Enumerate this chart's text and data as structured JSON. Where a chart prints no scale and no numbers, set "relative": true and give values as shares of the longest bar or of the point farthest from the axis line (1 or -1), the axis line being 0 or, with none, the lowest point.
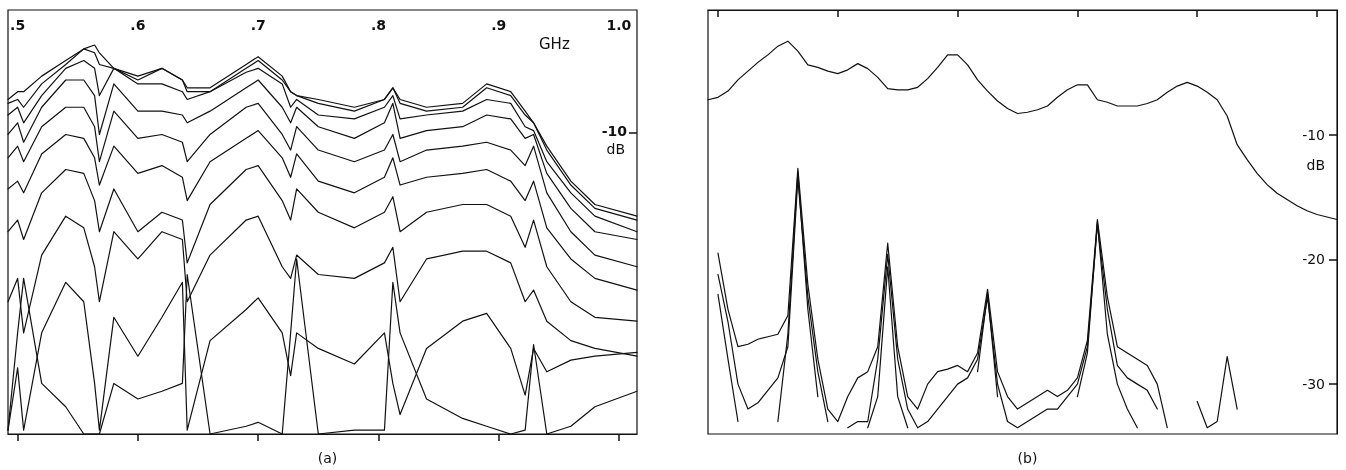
{
  "chart_data": [
    {
      "type": "line",
      "title": "(a)",
      "xlabel": "GHz",
      "ylabel": "dB",
      "annotations": [
        "-10"
      ],
      "relative": true,
      "marker": "none",
      "line_style": "solid",
      "x": [
        0.492,
        0.5,
        0.505,
        0.52,
        0.54,
        0.555,
        0.564,
        0.568,
        0.58,
        0.6,
        0.62,
        0.637,
        0.641,
        0.66,
        0.69,
        0.7,
        0.72,
        0.727,
        0.732,
        0.75,
        0.78,
        0.805,
        0.812,
        0.818,
        0.84,
        0.87,
        0.89,
        0.91,
        0.922,
        0.929,
        0.94,
        0.96,
        0.98,
        1.015
      ],
      "xlim": [
        0.492,
        1.015
      ],
      "xticks": [
        {
          "value": 0.5,
          "label": ".5"
        },
        {
          "value": 0.6,
          "label": ".6"
        },
        {
          "value": 0.7,
          "label": ".7"
        },
        {
          "value": 0.8,
          "label": ".8"
        },
        {
          "value": 0.9,
          "label": ".9"
        },
        {
          "value": 1.0,
          "label": "1.0"
        }
      ],
      "series": [
        {
          "color": "#111111",
          "values": [
            0.86,
            0.88,
            0.88,
            0.92,
            0.96,
            0.99,
            1.0,
            0.98,
            0.94,
            0.92,
            0.94,
            0.91,
            0.89,
            0.89,
            0.95,
            0.97,
            0.92,
            0.88,
            0.87,
            0.86,
            0.84,
            0.86,
            0.89,
            0.86,
            0.84,
            0.85,
            0.9,
            0.88,
            0.83,
            0.8,
            0.74,
            0.65,
            0.59,
            0.56
          ]
        },
        {
          "color": "#111111",
          "values": [
            0.85,
            0.86,
            0.84,
            0.9,
            0.95,
            0.99,
            0.98,
            0.95,
            0.94,
            0.91,
            0.94,
            0.91,
            0.88,
            0.88,
            0.94,
            0.96,
            0.91,
            0.88,
            0.87,
            0.85,
            0.83,
            0.86,
            0.89,
            0.85,
            0.83,
            0.84,
            0.89,
            0.87,
            0.82,
            0.8,
            0.73,
            0.64,
            0.58,
            0.55
          ]
        },
        {
          "color": "#111111",
          "values": [
            0.82,
            0.84,
            0.8,
            0.87,
            0.94,
            0.96,
            0.94,
            0.87,
            0.94,
            0.9,
            0.9,
            0.88,
            0.86,
            0.88,
            0.93,
            0.94,
            0.9,
            0.84,
            0.86,
            0.82,
            0.81,
            0.84,
            0.87,
            0.81,
            0.82,
            0.83,
            0.86,
            0.85,
            0.79,
            0.78,
            0.7,
            0.62,
            0.56,
            0.52
          ]
        },
        {
          "color": "#111111",
          "values": [
            0.77,
            0.8,
            0.75,
            0.84,
            0.91,
            0.91,
            0.87,
            0.77,
            0.9,
            0.83,
            0.83,
            0.82,
            0.8,
            0.83,
            0.89,
            0.91,
            0.84,
            0.8,
            0.84,
            0.79,
            0.76,
            0.8,
            0.85,
            0.76,
            0.78,
            0.79,
            0.82,
            0.81,
            0.76,
            0.77,
            0.67,
            0.58,
            0.52,
            0.5
          ]
        },
        {
          "color": "#111111",
          "values": [
            0.71,
            0.74,
            0.7,
            0.79,
            0.84,
            0.84,
            0.79,
            0.7,
            0.83,
            0.76,
            0.77,
            0.75,
            0.7,
            0.77,
            0.84,
            0.85,
            0.77,
            0.73,
            0.79,
            0.73,
            0.7,
            0.73,
            0.77,
            0.7,
            0.73,
            0.74,
            0.75,
            0.73,
            0.69,
            0.74,
            0.62,
            0.52,
            0.46,
            0.43
          ]
        },
        {
          "color": "#111111",
          "values": [
            0.63,
            0.65,
            0.62,
            0.72,
            0.77,
            0.76,
            0.71,
            0.64,
            0.74,
            0.67,
            0.69,
            0.66,
            0.6,
            0.7,
            0.76,
            0.78,
            0.71,
            0.66,
            0.72,
            0.65,
            0.62,
            0.66,
            0.71,
            0.64,
            0.66,
            0.67,
            0.68,
            0.65,
            0.6,
            0.65,
            0.53,
            0.45,
            0.4,
            0.37
          ]
        },
        {
          "color": "#111111",
          "values": [
            0.52,
            0.55,
            0.5,
            0.62,
            0.68,
            0.67,
            0.6,
            0.52,
            0.63,
            0.52,
            0.57,
            0.55,
            0.44,
            0.59,
            0.68,
            0.69,
            0.6,
            0.55,
            0.63,
            0.57,
            0.53,
            0.57,
            0.61,
            0.52,
            0.57,
            0.59,
            0.59,
            0.56,
            0.48,
            0.55,
            0.43,
            0.34,
            0.3,
            0.29
          ]
        },
        {
          "color": "#111111",
          "values": [
            0.34,
            0.4,
            0.26,
            0.46,
            0.56,
            0.53,
            0.43,
            0.34,
            0.52,
            0.45,
            0.52,
            0.5,
            0.34,
            0.46,
            0.55,
            0.56,
            0.43,
            0.4,
            0.46,
            0.41,
            0.4,
            0.44,
            0.48,
            0.34,
            0.45,
            0.47,
            0.47,
            0.44,
            0.34,
            0.37,
            0.29,
            0.24,
            0.22,
            0.2
          ]
        },
        {
          "color": "#111111",
          "values": [
            0.01,
            0.17,
            0.01,
            0.26,
            0.39,
            0.34,
            0.13,
            0.01,
            0.3,
            0.2,
            0.3,
            0.39,
            0.01,
            0.24,
            0.32,
            0.35,
            0.26,
            0.15,
            0.26,
            0.22,
            0.18,
            0.26,
            0.13,
            0.05,
            0.22,
            0.29,
            0.31,
            0.22,
            0.1,
            0.22,
            0.16,
            0.19,
            0.2,
            0.21
          ]
        },
        {
          "color": "#111111",
          "values": [
            0.01,
            0.26,
            0.4,
            0.13,
            0.07,
            0,
            0,
            0,
            0.13,
            0.09,
            0.11,
            0.13,
            0.41,
            0,
            0.02,
            0.03,
            0,
            0.26,
            0.45,
            0,
            0.01,
            0.01,
            0.39,
            0.26,
            0.09,
            0.04,
            0.02,
            0,
            0.01,
            0.23,
            0,
            0.02,
            0.07,
            0.11
          ]
        }
      ]
    },
    {
      "type": "line",
      "title": "(b)",
      "ylabel": "dB",
      "tick_labels": "y",
      "marker": "none",
      "line_style": "solid",
      "categories": [
        null,
        null,
        null,
        null,
        null,
        null,
        null,
        null,
        null,
        null,
        null,
        null,
        null,
        null,
        null,
        null,
        null,
        null,
        null,
        null,
        null,
        null,
        null,
        null,
        null,
        null,
        null,
        null,
        null,
        null,
        null,
        null,
        null,
        null,
        null,
        null,
        null,
        null,
        null,
        null,
        null,
        null,
        null,
        null,
        null,
        null,
        null,
        null,
        null,
        null,
        null,
        null,
        null,
        null,
        null,
        null,
        null,
        null,
        null,
        null,
        null,
        null,
        null,
        null
      ],
      "ylim": [
        -34,
        0
      ],
      "yticks": [
        -30,
        -20,
        -10
      ],
      "series": [
        {
          "color": "#111111",
          "values": [
            -7.2,
            -7.0,
            -6.5,
            -5.6,
            -4.9,
            -4.2,
            -3.6,
            -2.9,
            -2.5,
            -3.3,
            -4.4,
            -4.6,
            -4.9,
            -5.1,
            -4.8,
            -4.3,
            -4.7,
            -5.4,
            -6.3,
            -6.4,
            -6.4,
            -6.2,
            -5.5,
            -4.6,
            -3.6,
            -3.6,
            -4.4,
            -5.6,
            -6.5,
            -7.3,
            -7.9,
            -8.3,
            -8.2,
            -8.0,
            -7.7,
            -7.0,
            -6.4,
            -6.0,
            -6.0,
            -7.2,
            -7.4,
            -7.7,
            -7.7,
            -7.7,
            -7.5,
            -7.2,
            -6.6,
            -6.1,
            -5.8,
            -6.1,
            -6.6,
            -7.2,
            -8.5,
            -10.8,
            -12.0,
            -13.1,
            -14.0,
            -14.7,
            -15.2,
            -15.7,
            -16.1,
            -16.4,
            -16.6,
            -16.8
          ]
        },
        {
          "color": "#111111",
          "values": [
            null,
            -19.5,
            -24,
            -27,
            -26.8,
            -26.4,
            -26.2,
            -26,
            -24.5,
            -12.7,
            -22,
            -28,
            -32,
            -33,
            -31,
            -29.5,
            -29,
            -27,
            -18.7,
            -27,
            -31,
            -32,
            -30,
            -29,
            -28.8,
            -28.5,
            -29,
            -27.5,
            -22.4,
            -29,
            -31,
            -32,
            -31.5,
            -31,
            -30.5,
            -31,
            -30.5,
            -29.5,
            -26.5,
            -16.8,
            -23,
            -27,
            -27.5,
            -28,
            -28.5,
            -30,
            -33.5,
            null,
            null,
            -31.4,
            -33.5,
            -33,
            -27.8,
            -32,
            null,
            null,
            null,
            null,
            null,
            null,
            null,
            null,
            null,
            null
          ]
        },
        {
          "color": "#111111",
          "values": [
            null,
            -21.2,
            -25,
            -30,
            -32,
            -31.5,
            -30.5,
            -29.5,
            -27,
            -13.5,
            -23,
            -29,
            -33,
            null,
            -33.5,
            -33,
            -33,
            -28,
            -19.6,
            -28,
            -32,
            -33.5,
            -33,
            -32,
            -31,
            -30,
            -29.5,
            -28,
            -23,
            -30,
            -33,
            -33.5,
            -33,
            -32.5,
            -32,
            -32,
            -31,
            -30,
            -27,
            -17.2,
            -24,
            -28.5,
            -29.5,
            -30,
            -30.5,
            -32,
            null,
            null,
            null,
            null,
            null,
            null,
            null,
            null,
            null,
            null,
            null,
            null,
            null,
            null,
            null,
            null,
            null,
            null
          ]
        },
        {
          "color": "#111111",
          "values": [
            null,
            -22.8,
            -28,
            -33,
            null,
            null,
            null,
            -33,
            -26,
            -13,
            -24,
            -31,
            null,
            null,
            null,
            null,
            -33.5,
            -31,
            -20.6,
            -31,
            -33.5,
            null,
            null,
            null,
            null,
            null,
            null,
            -29,
            -22.7,
            -31,
            null,
            null,
            null,
            null,
            null,
            null,
            null,
            -31,
            -27.5,
            -17,
            -26,
            -30,
            -32,
            -33.5,
            null,
            null,
            null,
            null,
            null,
            null,
            null,
            null,
            null,
            null,
            null,
            null,
            null,
            null,
            null,
            null,
            null,
            null,
            null,
            null
          ]
        }
      ]
    }
  ]
}
